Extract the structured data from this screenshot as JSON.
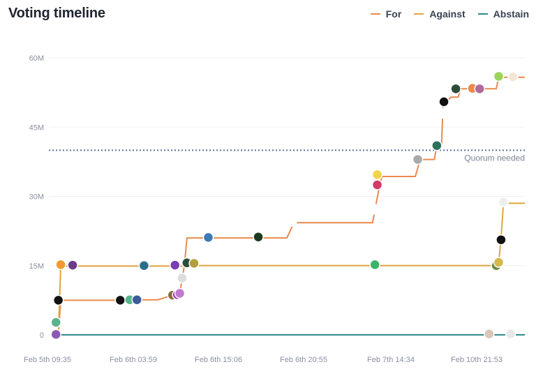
{
  "header": {
    "title": "Voting timeline"
  },
  "chart_data": {
    "type": "line",
    "title": "Voting timeline",
    "xlabel": "",
    "ylabel": "",
    "ylim": [
      0,
      60000000
    ],
    "y_ticks": [
      {
        "label": "0",
        "value": 0
      },
      {
        "label": "15M",
        "value": 15000000
      },
      {
        "label": "30M",
        "value": 30000000
      },
      {
        "label": "45M",
        "value": 45000000
      },
      {
        "label": "60M",
        "value": 60000000
      }
    ],
    "x_ticks": [
      "Feb 5th 09:35",
      "Feb 6th 03:59",
      "Feb 6th 15:06",
      "Feb 6th 20:55",
      "Feb 7th 14:34",
      "Feb 10th 21:53"
    ],
    "xlim": [
      0,
      100
    ],
    "grid": true,
    "legend_position": "top-right",
    "quorum": {
      "label": "Quorum needed",
      "value": 40000000
    },
    "series": [
      {
        "name": "For",
        "color": "#e98a4e",
        "points": [
          [
            2,
            0
          ],
          [
            2.5,
            7500000
          ],
          [
            14,
            7500000
          ],
          [
            17,
            7600000
          ],
          [
            19,
            7600000
          ],
          [
            23,
            7600000
          ],
          [
            26,
            8600000
          ],
          [
            27.5,
            9000000
          ],
          [
            28.5,
            15200000
          ],
          [
            29,
            21000000
          ],
          [
            36,
            21000000
          ],
          [
            44,
            21000000
          ],
          [
            50,
            21000000
          ],
          [
            51.5,
            24300000
          ],
          [
            60,
            24300000
          ],
          [
            68,
            24300000
          ],
          [
            69.5,
            32500000
          ],
          [
            70,
            34300000
          ],
          [
            77,
            34300000
          ],
          [
            78,
            38000000
          ],
          [
            81,
            38000000
          ],
          [
            81.5,
            41000000
          ],
          [
            82.5,
            41000000
          ],
          [
            82.8,
            49500000
          ],
          [
            83.5,
            50500000
          ],
          [
            84.5,
            51500000
          ],
          [
            86,
            51500000
          ],
          [
            86.5,
            53300000
          ],
          [
            89,
            53300000
          ],
          [
            94,
            53300000
          ],
          [
            94.5,
            55800000
          ],
          [
            98,
            55800000
          ],
          [
            100,
            55800000
          ]
        ]
      },
      {
        "name": "Against",
        "color": "#e0a53c",
        "points": [
          [
            2,
            0
          ],
          [
            2.5,
            14900000
          ],
          [
            8,
            14900000
          ],
          [
            24,
            14900000
          ],
          [
            28,
            14900000
          ],
          [
            29,
            15000000
          ],
          [
            55,
            15000000
          ],
          [
            68,
            15000000
          ],
          [
            93,
            15000000
          ],
          [
            94.5,
            15500000
          ],
          [
            95,
            21000000
          ],
          [
            95.5,
            28500000
          ],
          [
            100,
            28500000
          ]
        ]
      },
      {
        "name": "Abstain",
        "color": "#2f8a8b",
        "points": [
          [
            2,
            0
          ],
          [
            50,
            0
          ],
          [
            100,
            0
          ]
        ]
      }
    ],
    "voters": [
      {
        "x": 1.5,
        "y": 100000,
        "color": "#8c5ab3"
      },
      {
        "x": 1.5,
        "y": 2700000,
        "color": "#5ab38c"
      },
      {
        "x": 2,
        "y": 7500000,
        "color": "#111111"
      },
      {
        "x": 2.5,
        "y": 15200000,
        "color": "#f29b2d"
      },
      {
        "x": 5,
        "y": 15100000,
        "color": "#6a3d8a"
      },
      {
        "x": 15,
        "y": 7500000,
        "color": "#111111"
      },
      {
        "x": 17,
        "y": 7600000,
        "color": "#5ab38c"
      },
      {
        "x": 18.5,
        "y": 7600000,
        "color": "#3b5b9c"
      },
      {
        "x": 20,
        "y": 15000000,
        "color": "#2a6f8a"
      },
      {
        "x": 26,
        "y": 8600000,
        "color": "#8a6a3d"
      },
      {
        "x": 27,
        "y": 8700000,
        "color": "#9a3db3"
      },
      {
        "x": 27.5,
        "y": 9000000,
        "color": "#c07ad0"
      },
      {
        "x": 28,
        "y": 12300000,
        "color": "#dddddd"
      },
      {
        "x": 26.5,
        "y": 15100000,
        "color": "#7a3db3"
      },
      {
        "x": 29,
        "y": 15600000,
        "color": "#2b4c3a"
      },
      {
        "x": 30.5,
        "y": 15500000,
        "color": "#b3a03d"
      },
      {
        "x": 33.5,
        "y": 21100000,
        "color": "#3d7ab3"
      },
      {
        "x": 44,
        "y": 21200000,
        "color": "#1e3a1e"
      },
      {
        "x": 51,
        "y": 24600000,
        "color": "#ffffff"
      },
      {
        "x": 68.5,
        "y": 15200000,
        "color": "#3db36a"
      },
      {
        "x": 68.5,
        "y": 27200000,
        "color": "#ffffff"
      },
      {
        "x": 69,
        "y": 32500000,
        "color": "#d43a6a"
      },
      {
        "x": 69,
        "y": 34700000,
        "color": "#f2d44a"
      },
      {
        "x": 77.5,
        "y": 38000000,
        "color": "#a9a9a9"
      },
      {
        "x": 81.5,
        "y": 41000000,
        "color": "#2f6f5a"
      },
      {
        "x": 82.7,
        "y": 48000000,
        "color": "#ffffff"
      },
      {
        "x": 83,
        "y": 50500000,
        "color": "#111111"
      },
      {
        "x": 85.5,
        "y": 53300000,
        "color": "#2b4c3a"
      },
      {
        "x": 89,
        "y": 53400000,
        "color": "#e98a4e"
      },
      {
        "x": 90.5,
        "y": 53300000,
        "color": "#b36a9a"
      },
      {
        "x": 94.5,
        "y": 56000000,
        "color": "#9ad45a"
      },
      {
        "x": 97.5,
        "y": 55900000,
        "color": "#f5e6d6"
      },
      {
        "x": 92.5,
        "y": 200000,
        "color": "#d8c8b8"
      },
      {
        "x": 97,
        "y": 200000,
        "color": "#e8e8e8"
      },
      {
        "x": 94,
        "y": 15000000,
        "color": "#6a8a3d"
      },
      {
        "x": 94.5,
        "y": 15700000,
        "color": "#d4b84a"
      },
      {
        "x": 95,
        "y": 20600000,
        "color": "#111111"
      },
      {
        "x": 95.5,
        "y": 28800000,
        "color": "#eeeeee"
      }
    ]
  }
}
